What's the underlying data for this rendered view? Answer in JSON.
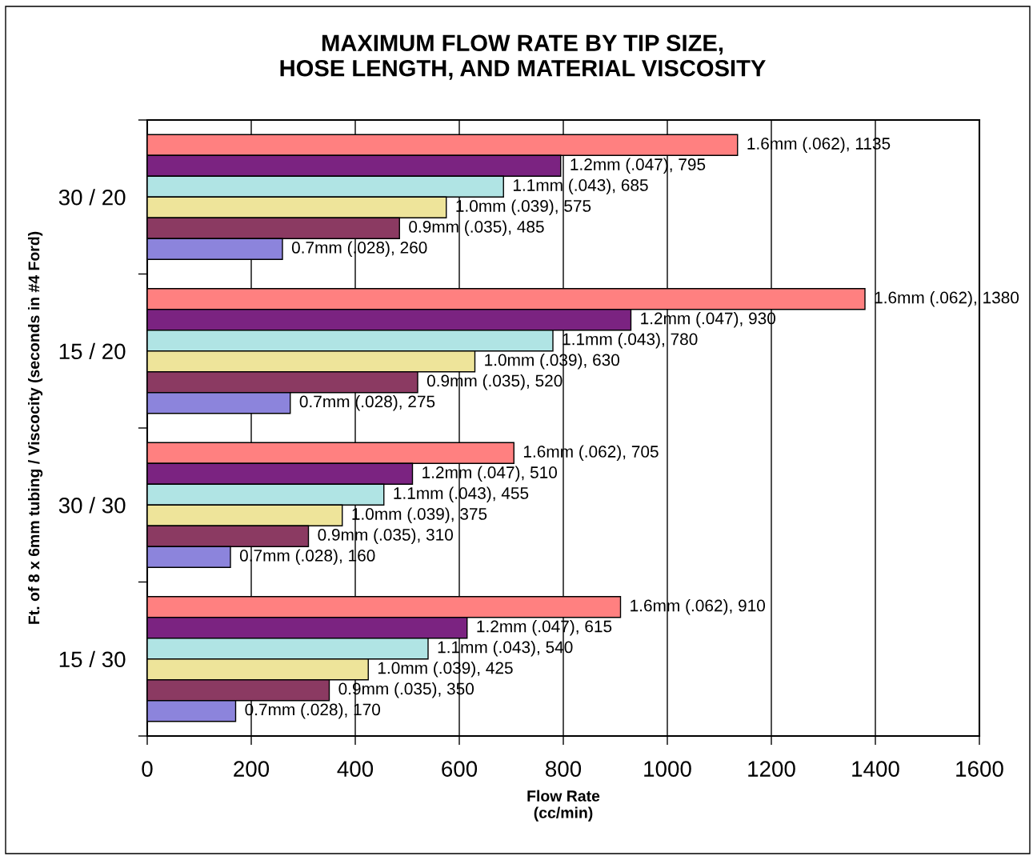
{
  "chart_data": {
    "type": "bar",
    "orientation": "horizontal",
    "title": "MAXIMUM FLOW RATE BY TIP SIZE,\nHOSE LENGTH, AND MATERIAL VISCOSITY",
    "xlabel": "Flow Rate\n(cc/min)",
    "ylabel": "Ft. of 8 x 6mm tubing / Viscocity (seconds in #4 Ford)",
    "categories": [
      "30 / 20",
      "15 / 20",
      "30 / 30",
      "15 / 30"
    ],
    "series": [
      {
        "color": "#ff8080",
        "values": [
          1135,
          1380,
          705,
          910
        ],
        "value_labels": [
          "1.6mm (.062), 1135",
          "1.6mm (.062), 1380",
          "1.6mm (.062), 705",
          "1.6mm (.062), 910"
        ]
      },
      {
        "color": "#7b2381",
        "values": [
          795,
          930,
          510,
          615
        ],
        "value_labels": [
          "1.2mm (.047), 795",
          "1.2mm (.047), 930",
          "1.2mm (.047), 510",
          "1.2mm (.047), 615"
        ]
      },
      {
        "color": "#b0e4e4",
        "values": [
          685,
          780,
          455,
          540
        ],
        "value_labels": [
          "1.1mm (.043), 685",
          "1.1mm (.043), 780",
          "1.1mm (.043), 455",
          "1.1mm (.043), 540"
        ]
      },
      {
        "color": "#eee49a",
        "values": [
          575,
          630,
          375,
          425
        ],
        "value_labels": [
          "1.0mm (.039), 575",
          "1.0mm (.039), 630",
          "1.0mm (.039), 375",
          "1.0mm (.039), 425"
        ]
      },
      {
        "color": "#8b3a62",
        "values": [
          485,
          520,
          310,
          350
        ],
        "value_labels": [
          "0.9mm (.035), 485",
          "0.9mm (.035), 520",
          "0.9mm (.035), 310",
          "0.9mm (.035), 350"
        ]
      },
      {
        "color": "#8c84dc",
        "values": [
          260,
          275,
          160,
          170
        ],
        "value_labels": [
          "0.7mm (.028), 260",
          "0.7mm (.028), 275",
          "0.7mm (.028), 160",
          "0.7mm (.028), 170"
        ]
      }
    ],
    "xlim": [
      0,
      1600
    ],
    "xticks": [
      0,
      200,
      400,
      600,
      800,
      1000,
      1200,
      1400,
      1600
    ],
    "grid": "x"
  }
}
